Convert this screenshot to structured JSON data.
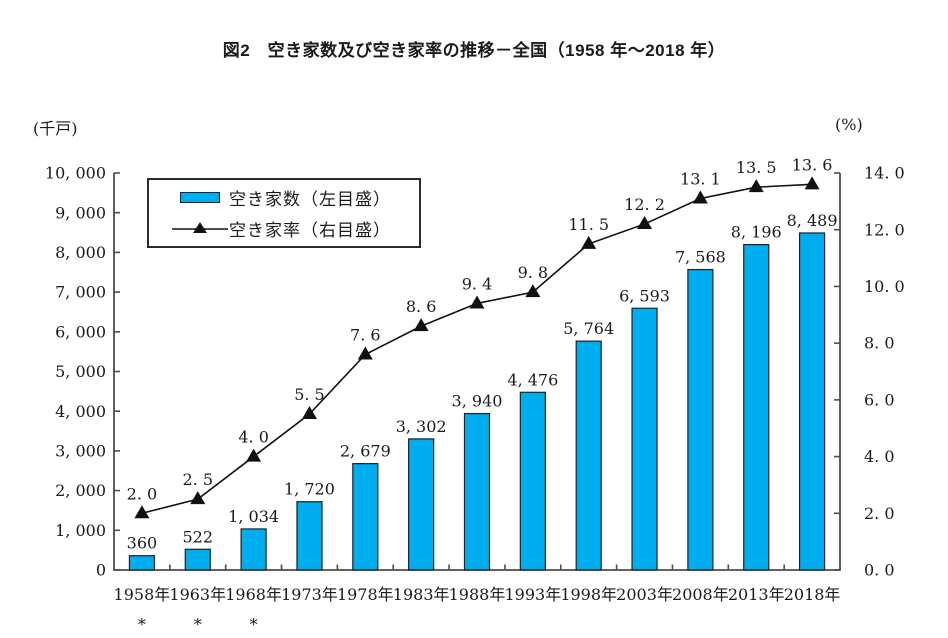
{
  "title": "図2　空き家数及び空き家率の推移－全国（1958 年～2018 年）",
  "legend": {
    "bar_label": "空き家数（左目盛）",
    "line_label": "空き家率（右目盛）"
  },
  "colors": {
    "bar_fill": "#00AEEF",
    "bar_border": "#1f1f1f",
    "line": "#111111",
    "marker": "#111111",
    "axis": "#4d4d4d",
    "text": "#1a1a1a"
  },
  "chart_data": {
    "type": "bar",
    "subtype": "bar-line-combo",
    "title": "図2　空き家数及び空き家率の推移－全国（1958 年～2018 年）",
    "categories": [
      "1958年",
      "1963年",
      "1968年",
      "1973年",
      "1978年",
      "1983年",
      "1988年",
      "1993年",
      "1998年",
      "2003年",
      "2008年",
      "2013年",
      "2018年"
    ],
    "category_footnote": {
      "symbol": "*",
      "indices": [
        0,
        1,
        2
      ]
    },
    "series": [
      {
        "name": "空き家数（左目盛）",
        "type": "bar",
        "axis": "left",
        "values": [
          360,
          522,
          1034,
          1720,
          2679,
          3302,
          3940,
          4476,
          5764,
          6593,
          7568,
          8196,
          8489
        ]
      },
      {
        "name": "空き家率（右目盛）",
        "type": "line",
        "axis": "right",
        "values": [
          2.0,
          2.5,
          4.0,
          5.5,
          7.6,
          8.6,
          9.4,
          9.8,
          11.5,
          12.2,
          13.1,
          13.5,
          13.6
        ]
      }
    ],
    "left_axis": {
      "unit": "(千戸)",
      "min": 0,
      "max": 10000,
      "step": 1000
    },
    "right_axis": {
      "unit": "(%)",
      "min": 0,
      "max": 14,
      "step": 2
    },
    "grid": false,
    "legend_position": "top-left-inside",
    "data_labels": true
  }
}
